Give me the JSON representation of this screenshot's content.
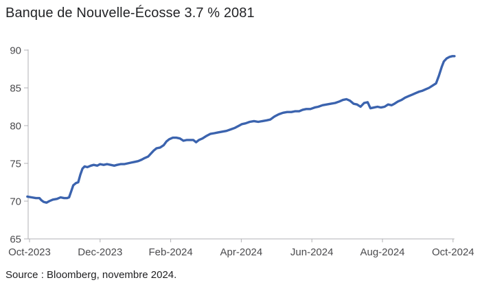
{
  "source": "Source : Bloomberg, novembre 2024.",
  "chart_data": {
    "type": "line",
    "title": "Banque de Nouvelle-Écosse 3.7 % 2081",
    "subtitle": "",
    "xlabel": "",
    "ylabel": "",
    "x_tick_labels": [
      "Oct-2023",
      "Dec-2023",
      "Feb-2024",
      "Apr-2024",
      "Jun-2024",
      "Aug-2024",
      "Oct-2024"
    ],
    "y_ticks": [
      65,
      70,
      75,
      80,
      85,
      90
    ],
    "ylim": [
      65,
      90
    ],
    "x_range_months": [
      0,
      6
    ],
    "grid": false,
    "legend": false,
    "colors": {
      "line": "#3b63ae",
      "axis": "#b1b1b4",
      "tick_text": "#4a4a4d"
    },
    "series": [
      {
        "name": "Banque de Nouvelle-Écosse 3.7 % 2081",
        "color": "#3b63ae",
        "points": [
          [
            -0.03,
            70.6
          ],
          [
            0.03,
            70.5
          ],
          [
            0.09,
            70.4
          ],
          [
            0.14,
            70.4
          ],
          [
            0.17,
            70.1
          ],
          [
            0.2,
            69.9
          ],
          [
            0.24,
            69.8
          ],
          [
            0.28,
            70.0
          ],
          [
            0.33,
            70.2
          ],
          [
            0.39,
            70.3
          ],
          [
            0.44,
            70.5
          ],
          [
            0.49,
            70.4
          ],
          [
            0.53,
            70.4
          ],
          [
            0.56,
            70.5
          ],
          [
            0.59,
            71.3
          ],
          [
            0.62,
            72.1
          ],
          [
            0.66,
            72.4
          ],
          [
            0.69,
            72.5
          ],
          [
            0.72,
            73.5
          ],
          [
            0.75,
            74.3
          ],
          [
            0.78,
            74.6
          ],
          [
            0.82,
            74.5
          ],
          [
            0.87,
            74.7
          ],
          [
            0.91,
            74.8
          ],
          [
            0.96,
            74.7
          ],
          [
            1.0,
            74.9
          ],
          [
            1.05,
            74.8
          ],
          [
            1.1,
            74.9
          ],
          [
            1.15,
            74.8
          ],
          [
            1.2,
            74.7
          ],
          [
            1.24,
            74.8
          ],
          [
            1.29,
            74.9
          ],
          [
            1.34,
            74.9
          ],
          [
            1.39,
            75.0
          ],
          [
            1.44,
            75.1
          ],
          [
            1.49,
            75.2
          ],
          [
            1.54,
            75.3
          ],
          [
            1.59,
            75.5
          ],
          [
            1.63,
            75.7
          ],
          [
            1.68,
            75.9
          ],
          [
            1.72,
            76.3
          ],
          [
            1.76,
            76.7
          ],
          [
            1.8,
            77.0
          ],
          [
            1.85,
            77.1
          ],
          [
            1.9,
            77.4
          ],
          [
            1.94,
            77.9
          ],
          [
            1.98,
            78.2
          ],
          [
            2.03,
            78.4
          ],
          [
            2.08,
            78.4
          ],
          [
            2.13,
            78.3
          ],
          [
            2.18,
            78.0
          ],
          [
            2.23,
            78.1
          ],
          [
            2.28,
            78.1
          ],
          [
            2.32,
            78.1
          ],
          [
            2.36,
            77.8
          ],
          [
            2.4,
            78.1
          ],
          [
            2.45,
            78.3
          ],
          [
            2.5,
            78.6
          ],
          [
            2.56,
            78.9
          ],
          [
            2.62,
            79.0
          ],
          [
            2.67,
            79.1
          ],
          [
            2.73,
            79.2
          ],
          [
            2.79,
            79.3
          ],
          [
            2.85,
            79.5
          ],
          [
            2.91,
            79.7
          ],
          [
            2.97,
            80.0
          ],
          [
            3.01,
            80.2
          ],
          [
            3.06,
            80.3
          ],
          [
            3.12,
            80.5
          ],
          [
            3.18,
            80.6
          ],
          [
            3.24,
            80.5
          ],
          [
            3.3,
            80.6
          ],
          [
            3.36,
            80.7
          ],
          [
            3.41,
            80.8
          ],
          [
            3.47,
            81.2
          ],
          [
            3.53,
            81.5
          ],
          [
            3.59,
            81.7
          ],
          [
            3.65,
            81.8
          ],
          [
            3.71,
            81.8
          ],
          [
            3.76,
            81.9
          ],
          [
            3.82,
            81.9
          ],
          [
            3.87,
            82.1
          ],
          [
            3.92,
            82.2
          ],
          [
            3.98,
            82.2
          ],
          [
            4.04,
            82.4
          ],
          [
            4.09,
            82.5
          ],
          [
            4.15,
            82.7
          ],
          [
            4.21,
            82.8
          ],
          [
            4.27,
            82.9
          ],
          [
            4.33,
            83.0
          ],
          [
            4.39,
            83.2
          ],
          [
            4.44,
            83.4
          ],
          [
            4.49,
            83.5
          ],
          [
            4.54,
            83.3
          ],
          [
            4.59,
            82.9
          ],
          [
            4.64,
            82.8
          ],
          [
            4.69,
            82.5
          ],
          [
            4.74,
            83.0
          ],
          [
            4.79,
            83.1
          ],
          [
            4.83,
            82.3
          ],
          [
            4.88,
            82.4
          ],
          [
            4.93,
            82.5
          ],
          [
            4.98,
            82.4
          ],
          [
            5.03,
            82.5
          ],
          [
            5.08,
            82.8
          ],
          [
            5.13,
            82.7
          ],
          [
            5.17,
            82.9
          ],
          [
            5.22,
            83.2
          ],
          [
            5.27,
            83.4
          ],
          [
            5.32,
            83.7
          ],
          [
            5.37,
            83.9
          ],
          [
            5.42,
            84.1
          ],
          [
            5.47,
            84.3
          ],
          [
            5.52,
            84.5
          ],
          [
            5.56,
            84.6
          ],
          [
            5.61,
            84.8
          ],
          [
            5.66,
            85.0
          ],
          [
            5.71,
            85.3
          ],
          [
            5.76,
            85.6
          ],
          [
            5.8,
            86.6
          ],
          [
            5.84,
            87.8
          ],
          [
            5.87,
            88.5
          ],
          [
            5.91,
            88.9
          ],
          [
            5.95,
            89.1
          ],
          [
            5.99,
            89.2
          ],
          [
            6.02,
            89.2
          ]
        ]
      }
    ]
  }
}
